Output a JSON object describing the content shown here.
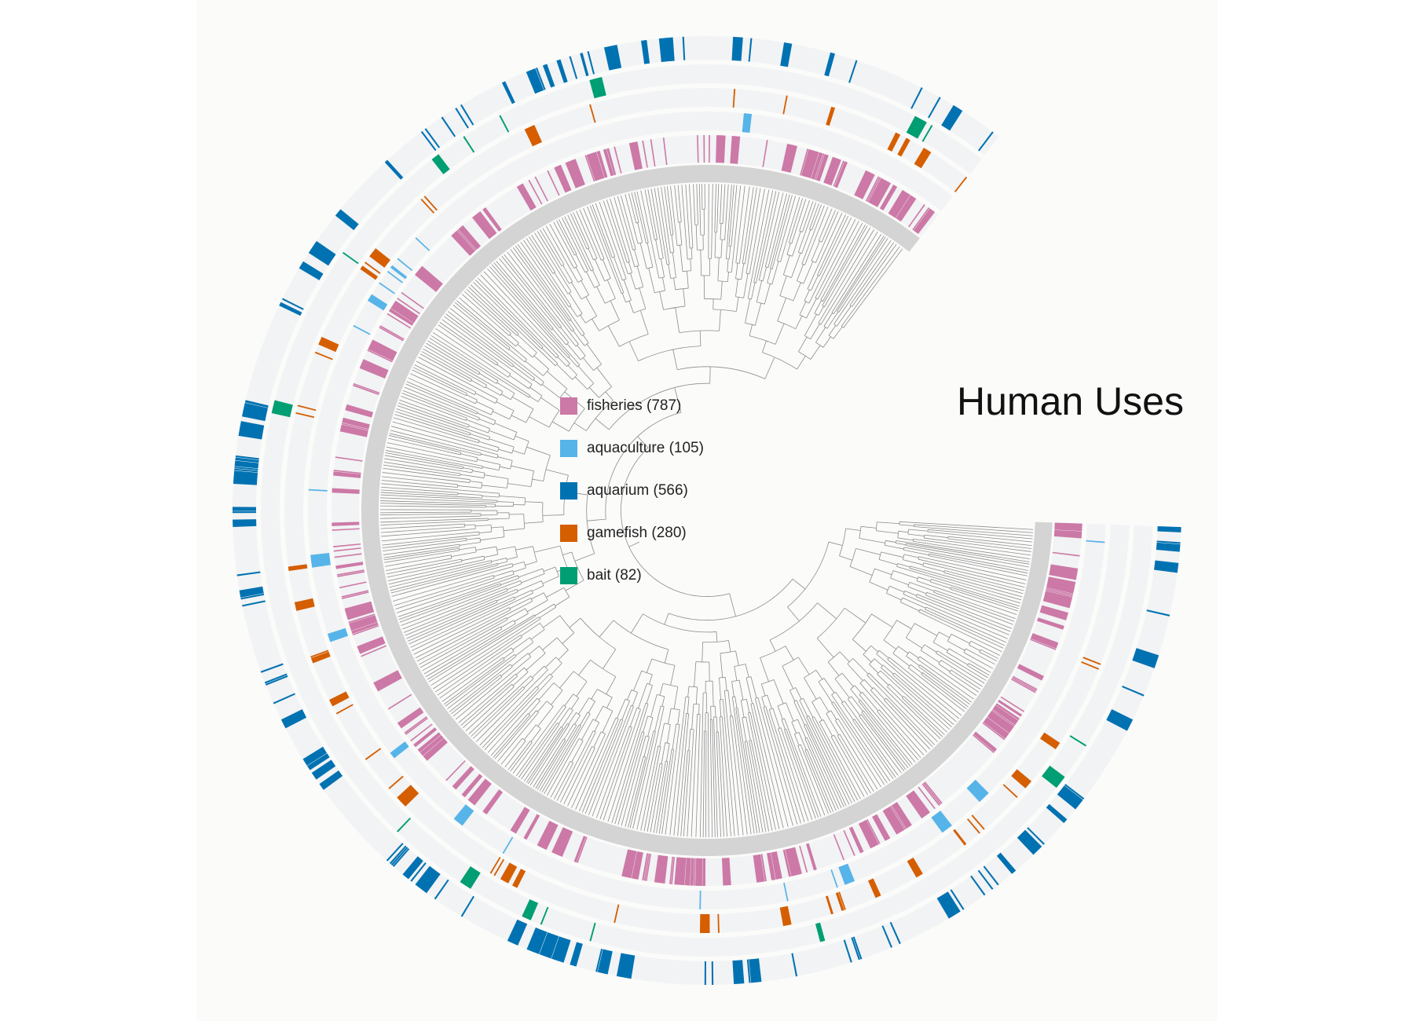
{
  "title": "Human Uses",
  "legend": [
    {
      "key": "fisheries",
      "label": "fisheries (787)",
      "color": "#cc79a7"
    },
    {
      "key": "aquaculture",
      "label": "aquaculture (105)",
      "color": "#56b4e9"
    },
    {
      "key": "aquarium",
      "label": "aquarium (566)",
      "color": "#0072b2"
    },
    {
      "key": "gamefish",
      "label": "gamefish (280)",
      "color": "#d55e00"
    },
    {
      "key": "bait",
      "label": "bait (82)",
      "color": "#009e73"
    }
  ],
  "tree_color": "#8c8c8c",
  "ring_background": "#f2f3f4"
}
